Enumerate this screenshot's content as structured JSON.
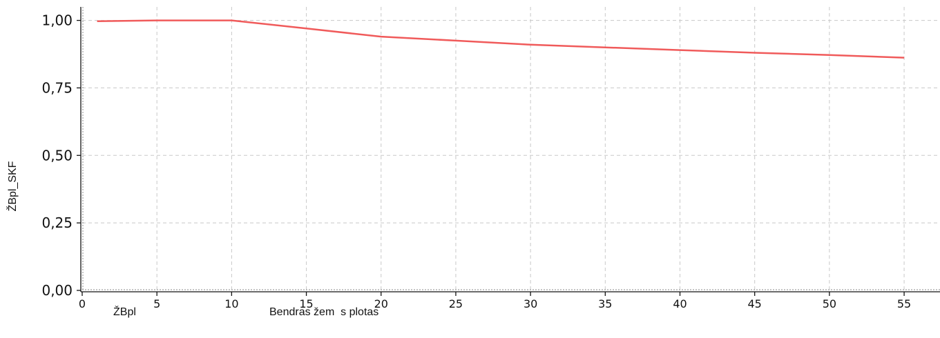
{
  "chart_data": {
    "type": "line",
    "xlabel": "Bendras žem  s plotas",
    "ylabel": "ŽBpl_SKF",
    "legend_label": "ŽBpl",
    "xlim": [
      0,
      57.4
    ],
    "ylim": [
      0,
      1.05
    ],
    "x_ticks": [
      0,
      5,
      10,
      15,
      20,
      25,
      30,
      35,
      40,
      45,
      50,
      55
    ],
    "x_tick_labels": [
      "0",
      "5",
      "10",
      "15",
      "20",
      "25",
      "30",
      "35",
      "40",
      "45",
      "50",
      "55"
    ],
    "y_ticks": [
      0,
      0.25,
      0.5,
      0.75,
      1.0
    ],
    "y_tick_labels": [
      "0,00",
      "0,25",
      "0,50",
      "0,75",
      "1,00"
    ],
    "grid": true,
    "series": [
      {
        "color": "#f05a5a",
        "x": [
          1,
          5,
          10,
          15,
          20,
          25,
          30,
          35,
          40,
          45,
          50,
          55
        ],
        "y": [
          0.997,
          1.0,
          1.0,
          0.97,
          0.94,
          0.925,
          0.91,
          0.9,
          0.89,
          0.88,
          0.872,
          0.862
        ]
      }
    ]
  }
}
